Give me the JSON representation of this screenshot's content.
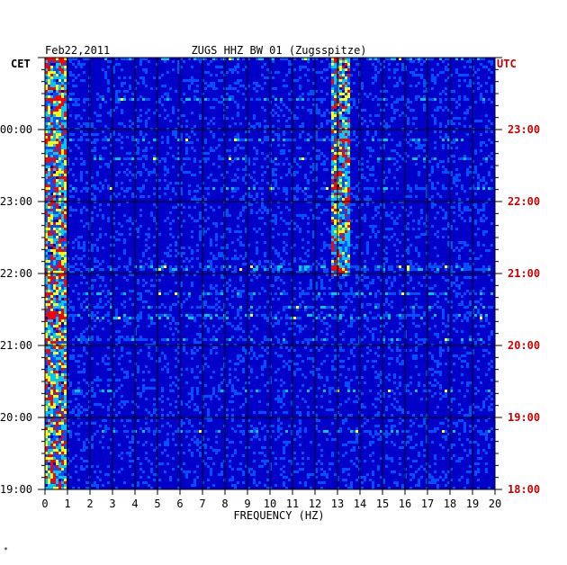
{
  "chart_data": {
    "type": "heatmap",
    "title_left": "Feb22,2011",
    "title": "ZUGS HHZ BW 01 (Zugsspitze)",
    "left_axis_label": "CET",
    "right_axis_label": "UTC",
    "xlabel": "FREQUENCY (HZ)",
    "xlim": [
      0,
      20
    ],
    "x_ticks": [
      "0",
      "1",
      "2",
      "3",
      "4",
      "5",
      "6",
      "7",
      "8",
      "9",
      "10",
      "11",
      "12",
      "13",
      "14",
      "15",
      "16",
      "17",
      "18",
      "19",
      "20"
    ],
    "left_time_labels": [
      "19:00",
      "20:00",
      "21:00",
      "22:00",
      "23:00",
      "00:00"
    ],
    "right_time_labels": [
      "18:00",
      "19:00",
      "20:00",
      "21:00",
      "22:00",
      "23:00"
    ],
    "time_range_utc": [
      "18:00",
      "24:00"
    ],
    "features": [
      {
        "name": "microseism band",
        "freq_hz": [
          0.1,
          0.6
        ],
        "level": "high"
      },
      {
        "name": "persistent line",
        "freq_hz": [
          12.8,
          13.2
        ],
        "time_utc": [
          "21:00",
          "24:00"
        ],
        "level": "high"
      }
    ],
    "colors": {
      "background": "#0000c8",
      "low": "#0000a0",
      "mid": "#00c8ff",
      "high": "#ffff00",
      "peak": "#ff0000",
      "right_labels": "#cc0000",
      "grid": "#000000"
    }
  },
  "footer_mark": "*"
}
